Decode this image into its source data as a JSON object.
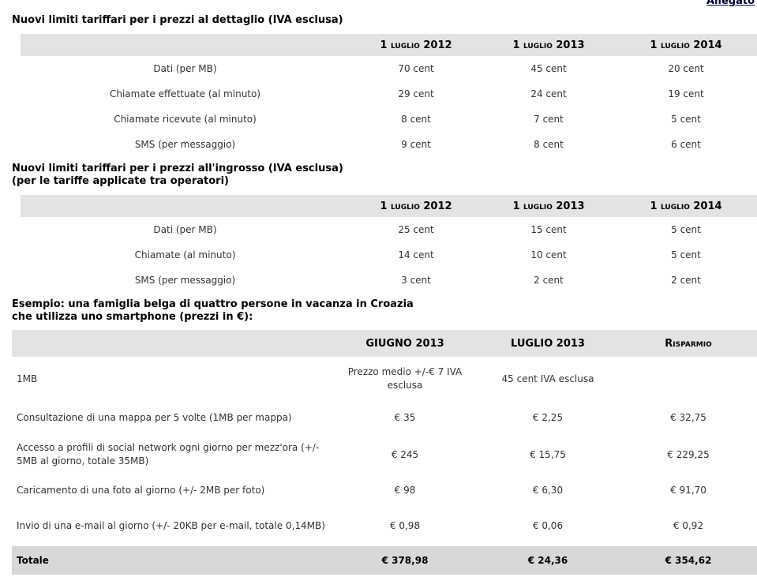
{
  "page": {
    "allegato_link": "Allegato"
  },
  "colors": {
    "header_bg": "#e3e3e3",
    "total_bg": "#d8d8d8",
    "text": "#333333",
    "link": "#000033"
  },
  "retail": {
    "title": "Nuovi limiti tariffari per i prezzi al dettaglio (IVA esclusa)",
    "headers": {
      "h2012": "1 luglio 2012",
      "h2013": "1 luglio 2013",
      "h2014": "1 luglio 2014"
    },
    "rows": [
      {
        "label": "Dati (per MB)",
        "v2012": "70 cent",
        "v2013": "45 cent",
        "v2014": "20 cent"
      },
      {
        "label": "Chiamate effettuate (al minuto)",
        "v2012": "29 cent",
        "v2013": "24 cent",
        "v2014": "19 cent"
      },
      {
        "label": "Chiamate ricevute (al minuto)",
        "v2012": "8 cent",
        "v2013": "7 cent",
        "v2014": "5 cent"
      },
      {
        "label": "SMS (per messaggio)",
        "v2012": "9 cent",
        "v2013": "8 cent",
        "v2014": "6 cent"
      }
    ]
  },
  "wholesale": {
    "title_line1": "Nuovi limiti tariffari per i prezzi all'ingrosso (IVA esclusa)",
    "title_line2": "(per le tariffe applicate tra operatori)",
    "headers": {
      "h2012": "1 luglio 2012",
      "h2013": "1 luglio 2013",
      "h2014": "1 luglio 2014"
    },
    "rows": [
      {
        "label": "Dati (per MB)",
        "v2012": "25 cent",
        "v2013": "15 cent",
        "v2014": "5 cent"
      },
      {
        "label": "Chiamate (al minuto)",
        "v2012": "14 cent",
        "v2013": "10 cent",
        "v2014": "5 cent"
      },
      {
        "label": "SMS (per messaggio)",
        "v2012": "3 cent",
        "v2013": "2 cent",
        "v2014": "2 cent"
      }
    ]
  },
  "example": {
    "title_line1": "Esempio: una famiglia belga di quattro persone in vacanza in Croazia",
    "title_line2": "che utilizza uno smartphone (prezzi in €):",
    "headers": {
      "giugno": "GIUGNO 2013",
      "luglio": "LUGLIO 2013",
      "risparmio": "Risparmio"
    },
    "rows": [
      {
        "label": "1MB",
        "giugno": "Prezzo medio +/-€ 7 IVA esclusa",
        "luglio": "45 cent IVA esclusa",
        "risparmio": ""
      },
      {
        "label": "Consultazione di una mappa per 5 volte (1MB per mappa)",
        "giugno": "€ 35",
        "luglio": "€ 2,25",
        "risparmio": "€ 32,75"
      },
      {
        "label": "Accesso a profili di social network ogni giorno per mezz'ora (+/- 5MB al giorno, totale 35MB)",
        "giugno": "€ 245",
        "luglio": "€ 15,75",
        "risparmio": "€ 229,25"
      },
      {
        "label": "Caricamento di una foto al giorno (+/- 2MB per foto)",
        "giugno": "€ 98",
        "luglio": "€ 6,30",
        "risparmio": "€ 91,70"
      },
      {
        "label": "Invio di una e-mail al giorno (+/- 20KB per e-mail, totale 0,14MB)",
        "giugno": "€ 0,98",
        "luglio": "€ 0,06",
        "risparmio": "€ 0,92"
      }
    ],
    "total": {
      "label": "Totale",
      "giugno": "€ 378,98",
      "luglio": "€ 24,36",
      "risparmio": "€ 354,62"
    }
  }
}
